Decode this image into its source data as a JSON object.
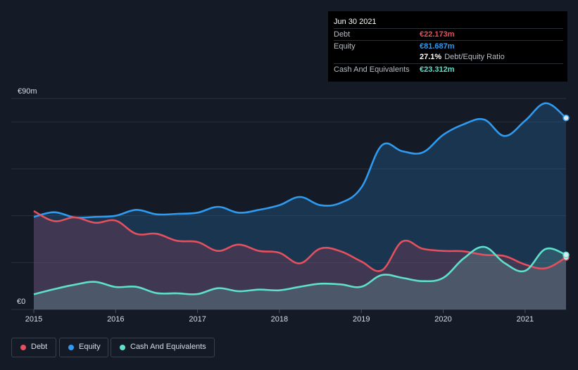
{
  "tooltip": {
    "date": "Jun 30 2021",
    "debt_label": "Debt",
    "debt_value": "€22.173m",
    "equity_label": "Equity",
    "equity_value": "€81.687m",
    "ratio_value": "27.1%",
    "ratio_label": "Debt/Equity Ratio",
    "cash_label": "Cash And Equivalents",
    "cash_value": "€23.312m"
  },
  "legend": {
    "debt": "Debt",
    "equity": "Equity",
    "cash": "Cash And Equivalents"
  },
  "colors": {
    "debt": "#e4505e",
    "equity": "#2e9bf0",
    "cash": "#5fe0cc",
    "background": "#151b26"
  },
  "chart_data": {
    "type": "area",
    "title": "",
    "xlabel": "",
    "ylabel": "",
    "ylim": [
      0,
      90
    ],
    "xlim": [
      2015,
      2021.5
    ],
    "y_tick_labels": [
      {
        "value": 90,
        "label": "€90m"
      },
      {
        "value": 0,
        "label": "€0"
      }
    ],
    "x_tick_labels": [
      {
        "value": 2015,
        "label": "2015"
      },
      {
        "value": 2016,
        "label": "2016"
      },
      {
        "value": 2017,
        "label": "2017"
      },
      {
        "value": 2018,
        "label": "2018"
      },
      {
        "value": 2019,
        "label": "2019"
      },
      {
        "value": 2020,
        "label": "2020"
      },
      {
        "value": 2021,
        "label": "2021"
      }
    ],
    "gridlines_y": [
      0,
      20,
      40,
      60,
      80,
      90
    ],
    "series": [
      {
        "name": "Equity",
        "x": [
          2015,
          2015.25,
          2015.5,
          2015.75,
          2016,
          2016.25,
          2016.5,
          2016.75,
          2017,
          2017.25,
          2017.5,
          2017.75,
          2018,
          2018.25,
          2018.5,
          2018.75,
          2019,
          2019.25,
          2019.5,
          2019.75,
          2020,
          2020.25,
          2020.5,
          2020.75,
          2021,
          2021.25,
          2021.5
        ],
        "values": [
          39.5,
          41.5,
          39.3,
          39.5,
          40.0,
          42.5,
          40.6,
          40.8,
          41.3,
          43.8,
          41.3,
          42.5,
          44.5,
          48.0,
          44.5,
          45.5,
          52.0,
          70.0,
          67.5,
          67.0,
          74.5,
          79.0,
          81.0,
          74.0,
          80.5,
          88.0,
          81.7
        ]
      },
      {
        "name": "Debt",
        "x": [
          2015,
          2015.25,
          2015.5,
          2015.75,
          2016,
          2016.25,
          2016.5,
          2016.75,
          2017,
          2017.25,
          2017.5,
          2017.75,
          2018,
          2018.25,
          2018.5,
          2018.75,
          2019,
          2019.25,
          2019.5,
          2019.75,
          2020,
          2020.25,
          2020.5,
          2020.75,
          2021,
          2021.25,
          2021.5
        ],
        "values": [
          42.0,
          37.7,
          39.3,
          37.0,
          37.9,
          32.3,
          32.3,
          29.3,
          28.8,
          25.0,
          27.7,
          25.0,
          24.2,
          19.7,
          26.0,
          24.8,
          20.5,
          16.7,
          29.0,
          25.9,
          25.0,
          24.8,
          23.3,
          22.8,
          19.2,
          17.6,
          22.2
        ]
      },
      {
        "name": "Cash And Equivalents",
        "x": [
          2015,
          2015.25,
          2015.5,
          2015.75,
          2016,
          2016.25,
          2016.5,
          2016.75,
          2017,
          2017.25,
          2017.5,
          2017.75,
          2018,
          2018.25,
          2018.5,
          2018.75,
          2019,
          2019.25,
          2019.5,
          2019.75,
          2020,
          2020.25,
          2020.5,
          2020.75,
          2021,
          2021.25,
          2021.5
        ],
        "values": [
          6.5,
          8.7,
          10.6,
          11.8,
          9.6,
          9.7,
          7.0,
          6.9,
          6.6,
          9.1,
          7.8,
          8.5,
          8.2,
          9.7,
          11.0,
          10.7,
          9.7,
          14.7,
          13.5,
          12.1,
          13.5,
          21.8,
          26.7,
          19.8,
          16.5,
          25.8,
          23.3
        ]
      }
    ],
    "highlight_x": 2021.5
  }
}
